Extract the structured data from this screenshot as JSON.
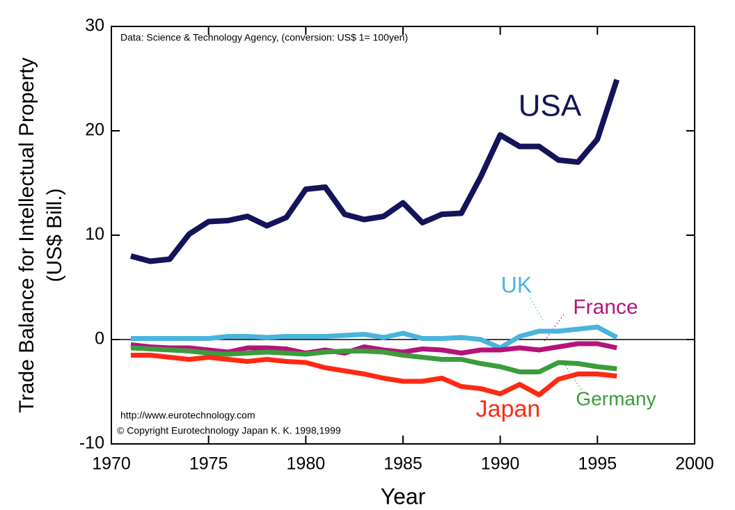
{
  "chart_data": {
    "type": "line",
    "xlabel": "Year",
    "ylabel": [
      "Trade Balance for Intellectual Property",
      "(US$ Bill.)"
    ],
    "annotations": [
      "Data: Science & Technology Agency, (conversion: US$ 1= 100yen)",
      "http://www.eurotechnology.com",
      "© Copyright Eurotechnology Japan K. K. 1998,1999"
    ],
    "x": [
      1971,
      1972,
      1973,
      1974,
      1975,
      1976,
      1977,
      1978,
      1979,
      1980,
      1981,
      1982,
      1983,
      1984,
      1985,
      1986,
      1987,
      1988,
      1989,
      1990,
      1991,
      1992,
      1993,
      1994,
      1995,
      1996
    ],
    "series": [
      {
        "name": "USA",
        "color": "#14145a",
        "values": [
          8.0,
          7.5,
          7.7,
          10.1,
          11.3,
          11.4,
          11.8,
          10.9,
          11.7,
          14.4,
          14.6,
          12.0,
          11.5,
          11.8,
          13.1,
          11.2,
          12.0,
          12.1,
          15.6,
          19.6,
          18.5,
          18.5,
          17.2,
          17.0,
          19.2,
          24.9
        ]
      },
      {
        "name": "UK",
        "color": "#4ab4dc",
        "values": [
          0.1,
          0.1,
          0.1,
          0.1,
          0.1,
          0.3,
          0.3,
          0.2,
          0.3,
          0.3,
          0.3,
          0.4,
          0.5,
          0.2,
          0.6,
          0.1,
          0.1,
          0.2,
          0.0,
          -0.8,
          0.3,
          0.8,
          0.8,
          1.0,
          1.2,
          0.2
        ]
      },
      {
        "name": "France",
        "color": "#b4147a",
        "values": [
          -0.5,
          -0.7,
          -0.8,
          -0.8,
          -1.0,
          -1.2,
          -0.8,
          -0.8,
          -0.9,
          -1.3,
          -1.0,
          -1.3,
          -0.7,
          -1.0,
          -1.2,
          -0.9,
          -1.0,
          -1.3,
          -1.0,
          -1.0,
          -0.8,
          -1.0,
          -0.7,
          -0.4,
          -0.4,
          -0.8
        ]
      },
      {
        "name": "Germany",
        "color": "#3c9c3c",
        "values": [
          -0.8,
          -0.9,
          -1.0,
          -1.1,
          -1.3,
          -1.4,
          -1.3,
          -1.2,
          -1.3,
          -1.4,
          -1.2,
          -1.1,
          -1.1,
          -1.2,
          -1.5,
          -1.7,
          -1.9,
          -1.9,
          -2.3,
          -2.6,
          -3.1,
          -3.1,
          -2.2,
          -2.3,
          -2.6,
          -2.8
        ]
      },
      {
        "name": "Japan",
        "color": "#ff2a14",
        "values": [
          -1.5,
          -1.5,
          -1.7,
          -1.9,
          -1.7,
          -1.9,
          -2.1,
          -1.9,
          -2.1,
          -2.2,
          -2.7,
          -3.0,
          -3.3,
          -3.7,
          -4.0,
          -4.0,
          -3.7,
          -4.5,
          -4.7,
          -5.2,
          -4.3,
          -5.3,
          -3.8,
          -3.3,
          -3.3,
          -3.5
        ]
      }
    ],
    "xlim": [
      1970,
      2000
    ],
    "xticks": [
      1970,
      1975,
      1980,
      1985,
      1990,
      1995,
      2000
    ],
    "ylim": [
      -10,
      30
    ],
    "yticks": [
      -10,
      0,
      10,
      20,
      30
    ],
    "grid": false,
    "zero_line": true
  }
}
